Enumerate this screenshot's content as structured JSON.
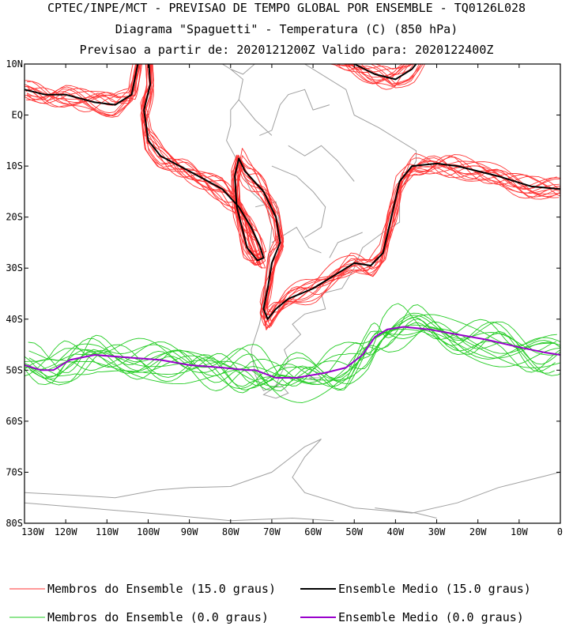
{
  "header": {
    "line1": "CPTEC/INPE/MCT - PREVISAO DE TEMPO GLOBAL POR ENSEMBLE - TQ0126L028",
    "line2": "Diagrama \"Spaguetti\" - Temperatura (C) (850 hPa)",
    "line3": "Previsao a partir de: 2020121200Z  Valido para: 2020122400Z"
  },
  "chart_data": {
    "type": "line",
    "title": "Diagrama \"Spaguetti\" - Temperatura (C) (850 hPa)",
    "xlabel": "",
    "ylabel": "",
    "xlim": [
      -130,
      0
    ],
    "ylim": [
      -80,
      10
    ],
    "x_ticks": [
      -130,
      -120,
      -110,
      -100,
      -90,
      -80,
      -70,
      -60,
      -50,
      -40,
      -30,
      -20,
      -10,
      0
    ],
    "x_tick_labels": [
      "130W",
      "120W",
      "110W",
      "100W",
      "90W",
      "80W",
      "70W",
      "60W",
      "50W",
      "40W",
      "30W",
      "20W",
      "10W",
      "0"
    ],
    "y_ticks": [
      10,
      0,
      -10,
      -20,
      -30,
      -40,
      -50,
      -60,
      -70,
      -80
    ],
    "y_tick_labels": [
      "10N",
      "EQ",
      "10S",
      "20S",
      "30S",
      "40S",
      "50S",
      "60S",
      "70S",
      "80S"
    ],
    "colors": {
      "member15": "#ff3333",
      "mean15": "#000000",
      "member0": "#22cc22",
      "mean0": "#9900cc",
      "coast": "#a0a0a0"
    },
    "series": [
      {
        "name": "Ensemble Medio (15.0 graus)",
        "isotherm": 15.0,
        "kind": "mean",
        "segments": [
          [
            [
              -130,
              5
            ],
            [
              -125,
              4
            ],
            [
              -120,
              4
            ],
            [
              -113,
              2.5
            ],
            [
              -108,
              2
            ],
            [
              -104,
              4
            ],
            [
              -103,
              8
            ],
            [
              -102,
              12
            ]
          ],
          [
            [
              -100,
              12
            ],
            [
              -99.5,
              6
            ],
            [
              -101,
              1
            ],
            [
              -100,
              -5
            ],
            [
              -97,
              -8
            ],
            [
              -90,
              -11
            ],
            [
              -82,
              -14.5
            ],
            [
              -78,
              -18
            ],
            [
              -75,
              -22
            ],
            [
              -73,
              -25.5
            ],
            [
              -72,
              -28
            ],
            [
              -73.5,
              -28.5
            ],
            [
              -76,
              -26
            ],
            [
              -78.5,
              -18
            ],
            [
              -79,
              -12
            ],
            [
              -78,
              -8.5
            ],
            [
              -76.5,
              -11
            ],
            [
              -72,
              -15
            ],
            [
              -69,
              -20
            ],
            [
              -68,
              -25
            ],
            [
              -70,
              -29
            ],
            [
              -71,
              -34
            ],
            [
              -72,
              -38
            ],
            [
              -71,
              -40
            ],
            [
              -69,
              -38
            ],
            [
              -66,
              -36
            ],
            [
              -60,
              -34
            ],
            [
              -54,
              -31
            ],
            [
              -50,
              -29
            ],
            [
              -46,
              -29.5
            ],
            [
              -43,
              -27
            ],
            [
              -41,
              -20
            ],
            [
              -39,
              -13
            ],
            [
              -36,
              -10
            ],
            [
              -30,
              -9.5
            ],
            [
              -25,
              -10
            ],
            [
              -15,
              -12
            ],
            [
              -7,
              -14
            ],
            [
              0,
              -14.5
            ]
          ],
          [
            [
              -56,
              12
            ],
            [
              -50,
              10
            ],
            [
              -45,
              8
            ],
            [
              -40,
              7
            ],
            [
              -36,
              9
            ],
            [
              -33,
              12
            ]
          ]
        ]
      },
      {
        "name": "Ensemble Medio (0.0 graus)",
        "isotherm": 0.0,
        "kind": "mean",
        "segments": [
          [
            [
              -130,
              -49
            ],
            [
              -126,
              -50
            ],
            [
              -123,
              -50
            ],
            [
              -119,
              -48
            ],
            [
              -113,
              -47
            ],
            [
              -105,
              -47.5
            ],
            [
              -97,
              -48
            ],
            [
              -90,
              -49
            ],
            [
              -82,
              -49.5
            ],
            [
              -76,
              -50
            ],
            [
              -74,
              -50
            ],
            [
              -69,
              -51.5
            ],
            [
              -64,
              -51.5
            ],
            [
              -57,
              -50.5
            ],
            [
              -52,
              -49.5
            ],
            [
              -48,
              -47
            ],
            [
              -45,
              -43.5
            ],
            [
              -42,
              -42
            ],
            [
              -38,
              -41.5
            ],
            [
              -32,
              -42
            ],
            [
              -25,
              -43
            ],
            [
              -18,
              -44
            ],
            [
              -10,
              -45.5
            ],
            [
              -4,
              -46.5
            ],
            [
              0,
              -47
            ]
          ]
        ]
      },
      {
        "name": "Membros do Ensemble (15.0 graus)",
        "isotherm": 15.0,
        "kind": "members",
        "perturb_amplitude_deg": 2.4,
        "count": 14,
        "base_series": "Ensemble Medio (15.0 graus)"
      },
      {
        "name": "Membros do Ensemble (0.0 graus)",
        "isotherm": 0.0,
        "kind": "members",
        "perturb_amplitude_deg": 4.0,
        "count": 14,
        "base_series": "Ensemble Medio (0.0 graus)"
      }
    ],
    "legend": [
      {
        "label": "Membros do Ensemble (15.0 graus)",
        "color": "#ff3333",
        "thin": true
      },
      {
        "label": "Ensemble Medio (15.0 graus)",
        "color": "#000000",
        "thin": false
      },
      {
        "label": "Membros do Ensemble (0.0 graus)",
        "color": "#22cc22",
        "thin": true
      },
      {
        "label": "Ensemble Medio (0.0 graus)",
        "color": "#9900cc",
        "thin": false
      }
    ]
  }
}
